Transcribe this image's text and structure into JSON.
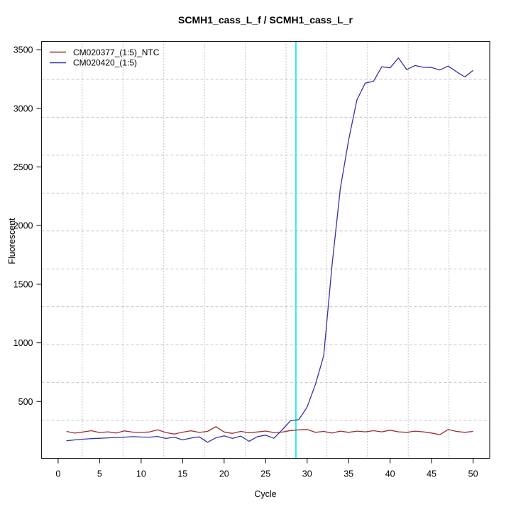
{
  "colors": {
    "background": "#ffffff",
    "frame": "#1a1a1a",
    "grid_horizontal": "#c6c6c6",
    "grid_vertical": "#8a8a8a",
    "text": "#000000"
  },
  "chart_data": {
    "type": "line",
    "title": "SCMH1_cass_L_f / SCMH1_cass_L_r",
    "xlabel": "Cycle",
    "ylabel": "Fluorescent",
    "legend_position": "top-left",
    "grid": {
      "divisions": 11,
      "horizontal_style": "dashed",
      "vertical_style": "dotted"
    },
    "xlim": [
      -2,
      52
    ],
    "ylim": [
      15,
      3570
    ],
    "x_ticks": [
      0,
      5,
      10,
      15,
      20,
      25,
      30,
      35,
      40,
      45,
      50
    ],
    "y_ticks": [
      500,
      1000,
      1500,
      2000,
      2500,
      3000,
      3500
    ],
    "threshold_cycle": 28.65,
    "threshold_color": "#00e9e9",
    "x": [
      1,
      2,
      3,
      4,
      5,
      6,
      7,
      8,
      9,
      10,
      11,
      12,
      13,
      14,
      15,
      16,
      17,
      18,
      19,
      20,
      21,
      22,
      23,
      24,
      25,
      26,
      27,
      28,
      29,
      30,
      31,
      32,
      33,
      34,
      35,
      36,
      37,
      38,
      39,
      40,
      41,
      42,
      43,
      44,
      45,
      46,
      47,
      48,
      49,
      50
    ],
    "series": [
      {
        "name": "CM020377_(1:5)_NTC",
        "color": "#993030",
        "values": [
          245,
          230,
          240,
          251,
          235,
          241,
          231,
          249,
          239,
          236,
          240,
          258,
          235,
          222,
          238,
          250,
          236,
          245,
          285,
          240,
          228,
          245,
          233,
          240,
          248,
          235,
          239,
          252,
          258,
          261,
          237,
          245,
          231,
          247,
          237,
          247,
          241,
          251,
          241,
          255,
          241,
          237,
          247,
          241,
          231,
          217,
          261,
          245,
          237,
          245
        ]
      },
      {
        "name": "CM020420_(1:5)",
        "color": "#3434a4",
        "values": [
          165,
          172,
          178,
          183,
          186,
          190,
          193,
          196,
          200,
          197,
          196,
          202,
          185,
          196,
          172,
          188,
          198,
          152,
          190,
          207,
          185,
          205,
          160,
          200,
          213,
          186,
          258,
          336,
          345,
          452,
          645,
          890,
          1660,
          2315,
          2730,
          3072,
          3215,
          3230,
          3355,
          3345,
          3430,
          3330,
          3365,
          3350,
          3348,
          3327,
          3360,
          3312,
          3268,
          3324
        ]
      }
    ]
  }
}
